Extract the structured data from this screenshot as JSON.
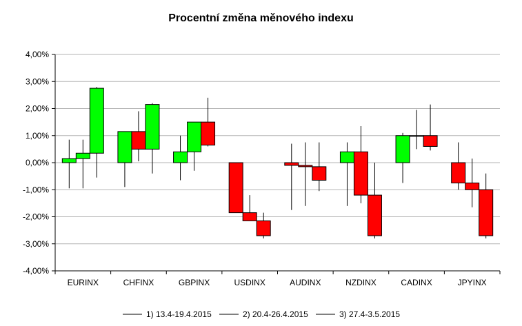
{
  "chart_data": {
    "type": "candlestick",
    "title": "Procentní změna měnového indexu",
    "xlabel": "",
    "ylabel": "",
    "ylim": [
      -4,
      4
    ],
    "ytick_values": [
      4,
      3,
      2,
      1,
      0,
      -1,
      -2,
      -3,
      -4
    ],
    "ytick_labels": [
      "4,00%",
      "3,00%",
      "2,00%",
      "1,00%",
      "0,00%",
      "-1,00%",
      "-2,00%",
      "-3,00%",
      "-4,00%"
    ],
    "grid": true,
    "legend_position": "bottom",
    "categories": [
      "EURINX",
      "CHFINX",
      "GBPINX",
      "USDINX",
      "AUDINX",
      "NZDINX",
      "CADINX",
      "JPYINX"
    ],
    "colors": {
      "up": "#00ff00",
      "down": "#ff0000",
      "wick": "#000000",
      "grid": "#b3b3b3",
      "axis": "#000000"
    },
    "series": [
      {
        "name": "1) 13.4-19.4.2015",
        "values": [
          {
            "open": 0.0,
            "close": 0.15,
            "high": 0.85,
            "low": -0.95
          },
          {
            "open": 0.0,
            "close": 1.15,
            "high": 1.15,
            "low": -0.9
          },
          {
            "open": 0.0,
            "close": 0.4,
            "high": 1.0,
            "low": -0.65
          },
          {
            "open": 0.0,
            "close": -1.85,
            "high": 0.0,
            "low": -1.85
          },
          {
            "open": 0.0,
            "close": -0.1,
            "high": 0.7,
            "low": -1.75
          },
          {
            "open": 0.0,
            "close": 0.4,
            "high": 0.75,
            "low": -1.6
          },
          {
            "open": 0.0,
            "close": 1.0,
            "high": 1.1,
            "low": -0.75
          },
          {
            "open": 0.0,
            "close": -0.75,
            "high": 0.75,
            "low": -1.0
          }
        ]
      },
      {
        "name": "2) 20.4-26.4.2015",
        "values": [
          {
            "open": 0.15,
            "close": 0.35,
            "high": 0.85,
            "low": -0.95
          },
          {
            "open": 1.15,
            "close": 0.5,
            "high": 1.9,
            "low": 0.05
          },
          {
            "open": 0.4,
            "close": 1.5,
            "high": 1.5,
            "low": -0.3
          },
          {
            "open": -1.85,
            "close": -2.15,
            "high": -1.2,
            "low": -2.15
          },
          {
            "open": -0.1,
            "close": -0.15,
            "high": 0.75,
            "low": -1.6
          },
          {
            "open": 0.4,
            "close": -1.2,
            "high": 1.35,
            "low": -1.5
          },
          {
            "open": 1.0,
            "close": 1.0,
            "high": 1.95,
            "low": 0.5
          },
          {
            "open": -0.75,
            "close": -1.0,
            "high": 0.15,
            "low": -1.65
          }
        ]
      },
      {
        "name": "3) 27.4-3.5.2015",
        "values": [
          {
            "open": 0.35,
            "close": 2.75,
            "high": 2.8,
            "low": -0.55
          },
          {
            "open": 0.5,
            "close": 2.15,
            "high": 2.2,
            "low": -0.4
          },
          {
            "open": 1.5,
            "close": 0.65,
            "high": 2.4,
            "low": 0.6
          },
          {
            "open": -2.15,
            "close": -2.7,
            "high": -1.85,
            "low": -2.8
          },
          {
            "open": -0.15,
            "close": -0.65,
            "high": 0.75,
            "low": -1.05
          },
          {
            "open": -1.2,
            "close": -2.7,
            "high": 0.0,
            "low": -2.8
          },
          {
            "open": 1.0,
            "close": 0.6,
            "high": 2.15,
            "low": 0.45
          },
          {
            "open": -1.0,
            "close": -2.7,
            "high": -0.4,
            "low": -2.8
          }
        ]
      }
    ]
  }
}
